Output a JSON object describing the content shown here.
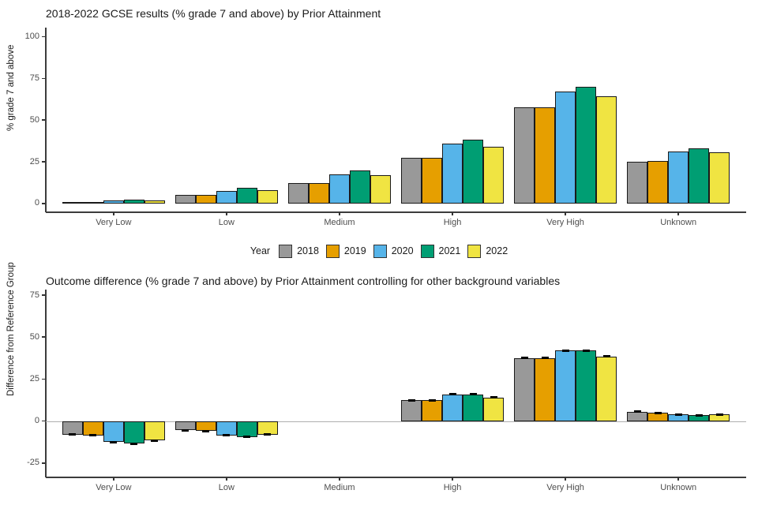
{
  "legend": {
    "title": "Year",
    "items": [
      {
        "label": "2018",
        "color": "#999999"
      },
      {
        "label": "2019",
        "color": "#E69F00"
      },
      {
        "label": "2020",
        "color": "#56B4E9"
      },
      {
        "label": "2021",
        "color": "#009E73"
      },
      {
        "label": "2022",
        "color": "#F0E442"
      }
    ]
  },
  "colors": {
    "bar_border": "#1a1a1a",
    "axis_line": "#3c3c3c",
    "tick_text": "#4d4d4d",
    "zero_line": "#b0b0b0"
  },
  "chart_data": [
    {
      "type": "bar",
      "title": "2018-2022 GCSE results (% grade 7 and above) by Prior Attainment",
      "xlabel": "",
      "ylabel": "% grade 7 and above",
      "categories": [
        "Very Low",
        "Low",
        "Medium",
        "High",
        "Very High",
        "Unknown"
      ],
      "yticks": [
        0,
        25,
        50,
        75,
        100
      ],
      "ylim": [
        -5.2,
        105.4
      ],
      "grid": false,
      "legend_position": "shared-bottom",
      "series": [
        {
          "name": "2018",
          "color": "#999999",
          "values": [
            1,
            5,
            12.5,
            27.5,
            57.5,
            25
          ]
        },
        {
          "name": "2019",
          "color": "#E69F00",
          "values": [
            1,
            5,
            12.5,
            27.5,
            57.5,
            25.5
          ]
        },
        {
          "name": "2020",
          "color": "#56B4E9",
          "values": [
            2,
            7.5,
            17.5,
            36,
            67,
            31
          ]
        },
        {
          "name": "2021",
          "color": "#009E73",
          "values": [
            2.5,
            9.5,
            20,
            38.5,
            70,
            33
          ]
        },
        {
          "name": "2022",
          "color": "#F0E442",
          "values": [
            2,
            8,
            17,
            34,
            64.5,
            30.5
          ]
        }
      ]
    },
    {
      "type": "bar",
      "title": "Outcome difference (% grade 7 and above) by Prior Attainment controlling for other background variables",
      "xlabel": "",
      "ylabel": "Difference from Reference Group",
      "categories": [
        "Very Low",
        "Low",
        "Medium",
        "High",
        "Very High",
        "Unknown"
      ],
      "yticks": [
        -25,
        0,
        25,
        50,
        75
      ],
      "ylim": [
        -33.5,
        78.3
      ],
      "grid": false,
      "zero_line": true,
      "error_bar_se": 0.5,
      "reference_group": "Medium",
      "series": [
        {
          "name": "2018",
          "color": "#999999",
          "values": [
            -8,
            -5.5,
            0,
            12.5,
            37.5,
            5.5
          ]
        },
        {
          "name": "2019",
          "color": "#E69F00",
          "values": [
            -8.5,
            -6,
            0,
            12.5,
            37.5,
            5
          ]
        },
        {
          "name": "2020",
          "color": "#56B4E9",
          "values": [
            -12.5,
            -8.5,
            0,
            16,
            42,
            4
          ]
        },
        {
          "name": "2021",
          "color": "#009E73",
          "values": [
            -13.5,
            -9.5,
            0,
            16,
            42,
            3.5
          ]
        },
        {
          "name": "2022",
          "color": "#F0E442",
          "values": [
            -11.5,
            -8,
            0,
            14,
            38.5,
            4
          ]
        }
      ]
    }
  ]
}
